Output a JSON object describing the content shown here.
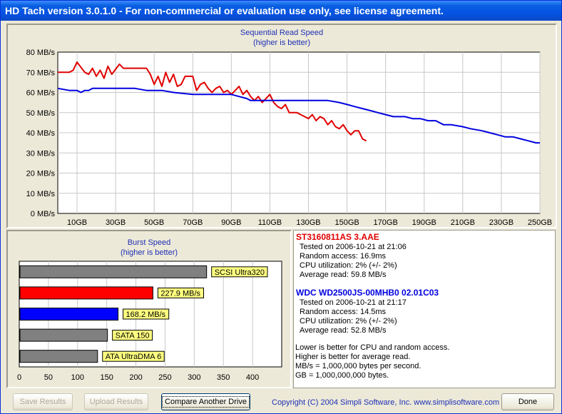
{
  "window": {
    "title": "HD Tach version 3.0.1.0  - For non-commercial or evaluation use only, see license agreement."
  },
  "sequential_chart": {
    "title_line1": "Sequential Read Speed",
    "title_line2": "(higher is better)"
  },
  "burst_chart": {
    "title_line1": "Burst Speed",
    "title_line2": "(higher is better)"
  },
  "chart_data": [
    {
      "type": "line",
      "title": "Sequential Read Speed",
      "subtitle": "(higher is better)",
      "x_unit_labels": [
        "10GB",
        "30GB",
        "50GB",
        "70GB",
        "90GB",
        "110GB",
        "130GB",
        "150GB",
        "170GB",
        "190GB",
        "210GB",
        "230GB",
        "250GB"
      ],
      "y_tick_labels": [
        "0 MB/s",
        "10 MB/s",
        "20 MB/s",
        "30 MB/s",
        "40 MB/s",
        "50 MB/s",
        "60 MB/s",
        "70 MB/s",
        "80 MB/s"
      ],
      "xlim": [
        0,
        250
      ],
      "ylim": [
        0,
        80
      ],
      "grid": true,
      "series": [
        {
          "color": "#e00000",
          "x": [
            0,
            6,
            8,
            10,
            14,
            16,
            18,
            20,
            22,
            24,
            26,
            28,
            32,
            34,
            36,
            40,
            44,
            46,
            48,
            50,
            52,
            54,
            56,
            58,
            60,
            62,
            64,
            66,
            68,
            70,
            72,
            74,
            76,
            78,
            80,
            82,
            84,
            86,
            88,
            90,
            92,
            94,
            96,
            98,
            100,
            102,
            104,
            106,
            108,
            110,
            112,
            114,
            116,
            118,
            120,
            122,
            124,
            126,
            128,
            130,
            132,
            134,
            136,
            138,
            140,
            142,
            144,
            146,
            148,
            150,
            152,
            154,
            156,
            158,
            160
          ],
          "y": [
            70,
            70,
            71,
            75,
            70,
            69,
            72,
            68,
            71,
            67,
            73,
            69,
            74,
            72,
            72,
            72,
            72,
            72,
            69,
            64,
            68,
            63,
            70,
            65,
            69,
            63,
            64,
            68,
            68,
            68,
            61,
            64,
            65,
            62,
            60,
            62,
            63,
            60,
            61,
            59,
            61,
            63,
            59,
            61,
            58,
            56,
            58,
            55,
            57,
            59,
            55,
            53,
            52,
            54,
            50,
            50,
            50,
            49,
            48,
            47,
            49,
            46,
            48,
            47,
            44,
            46,
            43,
            42,
            44,
            41,
            39,
            41,
            41,
            37,
            36
          ]
        },
        {
          "color": "#0000e0",
          "x": [
            0,
            6,
            10,
            12,
            14,
            16,
            18,
            20,
            30,
            40,
            46,
            50,
            54,
            60,
            70,
            80,
            90,
            94,
            98,
            100,
            110,
            120,
            130,
            140,
            146,
            150,
            154,
            158,
            162,
            166,
            170,
            174,
            178,
            180,
            184,
            188,
            192,
            196,
            200,
            204,
            210,
            214,
            220,
            224,
            228,
            232,
            236,
            240,
            244,
            248,
            250
          ],
          "y": [
            62,
            61,
            61,
            60,
            61,
            61,
            62,
            62,
            62,
            62,
            61,
            61,
            61,
            60,
            59,
            59,
            59,
            58,
            57,
            56,
            56,
            56,
            56,
            56,
            55,
            54,
            53,
            52,
            51,
            50,
            49,
            48,
            48,
            48,
            47,
            47,
            46,
            46,
            44,
            44,
            43,
            42,
            41,
            40,
            39,
            38,
            38,
            37,
            36,
            35,
            35
          ]
        }
      ]
    },
    {
      "type": "bar",
      "title": "Burst Speed",
      "subtitle": "(higher is better)",
      "xlim": [
        0,
        450
      ],
      "x_ticks": [
        0,
        50,
        100,
        150,
        200,
        250,
        300,
        350,
        400
      ],
      "grid": true,
      "bars": [
        {
          "label": "SCSI Ultra320",
          "value": 320,
          "color": "#808080"
        },
        {
          "label": "227.9 MB/s",
          "value": 227.9,
          "color": "#ff0000"
        },
        {
          "label": "168.2 MB/s",
          "value": 168.2,
          "color": "#0000ff"
        },
        {
          "label": "SATA 150",
          "value": 150,
          "color": "#808080"
        },
        {
          "label": "ATA UltraDMA 6",
          "value": 133,
          "color": "#808080"
        }
      ]
    }
  ],
  "drives": [
    {
      "name": "ST3160811AS 3.AAE",
      "color": "#e00000",
      "lines": [
        "Tested on 2006-10-21 at 21:06",
        "Random access: 16.9ms",
        "CPU utilization: 2% (+/- 2%)",
        "Average read: 59.8 MB/s"
      ]
    },
    {
      "name": "WDC WD2500JS-00MHB0 02.01C03",
      "color": "#0000e0",
      "lines": [
        "Tested on 2006-10-21 at 21:17",
        "Random access: 14.5ms",
        "CPU utilization: 2% (+/- 2%)",
        "Average read: 52.8 MB/s"
      ]
    }
  ],
  "notes": [
    "Lower is better for CPU and random access.",
    "Higher is better for average read.",
    "MB/s = 1,000,000 bytes per second.",
    "GB = 1,000,000,000 bytes."
  ],
  "buttons": {
    "save": "Save Results",
    "upload": "Upload Results",
    "compare": "Compare Another Drive",
    "done": "Done"
  },
  "copyright": "Copyright (C) 2004 Simpli Software, Inc. www.simplisoftware.com"
}
